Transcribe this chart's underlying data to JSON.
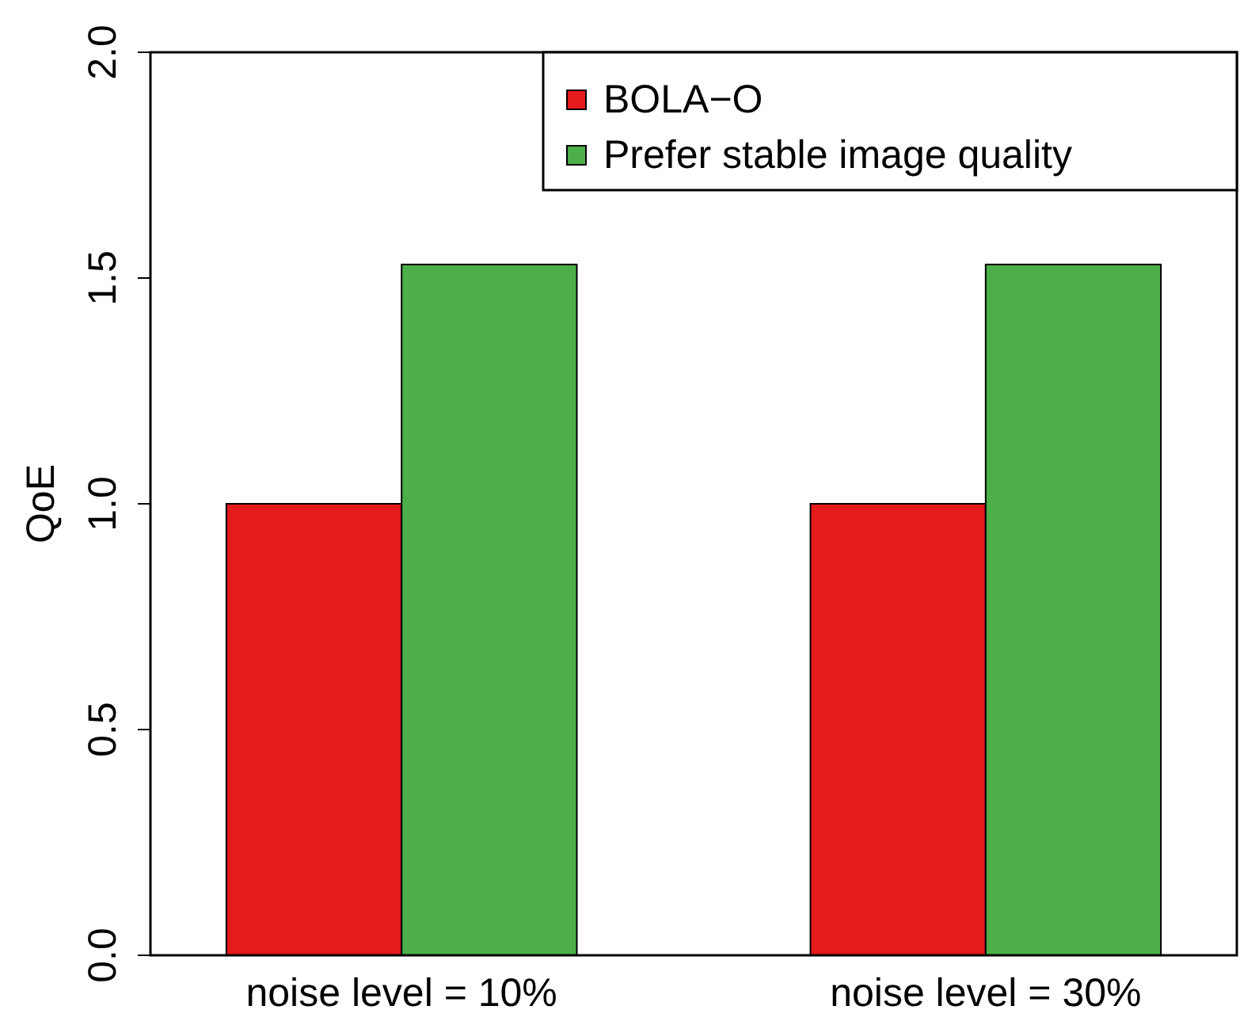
{
  "chart_data": {
    "type": "bar",
    "ylabel": "QoE",
    "categories": [
      "noise level = 10%",
      "noise level = 30%"
    ],
    "series": [
      {
        "name": "BOLA−O",
        "color": "#e41a1c",
        "values": [
          1.0,
          1.0
        ]
      },
      {
        "name": "Prefer stable image quality",
        "color": "#4daf4a",
        "values": [
          1.53,
          1.53
        ]
      }
    ],
    "ylim": [
      0,
      2
    ],
    "yticks": [
      {
        "value": 0,
        "label": "0.0"
      },
      0.5,
      {
        "value": 1,
        "label": "1.0"
      },
      1.5,
      {
        "value": 2,
        "label": "2.0"
      }
    ],
    "legend": "top right",
    "grid": false
  }
}
